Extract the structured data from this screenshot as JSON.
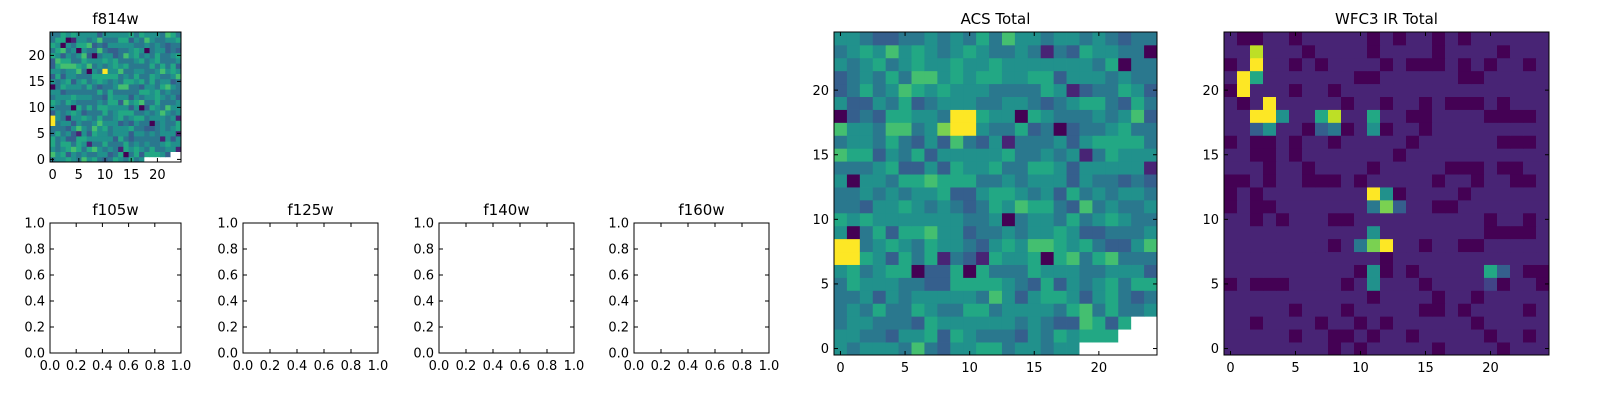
{
  "figure": {
    "description_free": true
  },
  "chart_data": [
    {
      "id": "f814w",
      "type": "heatmap",
      "title": "f814w",
      "xlim": [
        -0.5,
        24.5
      ],
      "ylim": [
        -0.5,
        24.5
      ],
      "xticks": [
        0,
        5,
        10,
        15,
        20
      ],
      "yticks": [
        0,
        5,
        10,
        15,
        20
      ],
      "colormap": "viridis",
      "hot_pixels": [
        [
          10,
          17,
          1.0
        ],
        [
          0,
          8,
          1.0
        ],
        [
          0,
          7,
          0.95
        ]
      ],
      "masked_region": "bottom-right corner"
    },
    {
      "id": "f105w",
      "type": "empty",
      "title": "f105w",
      "xlim": [
        0,
        1
      ],
      "ylim": [
        0,
        1
      ],
      "xticks": [
        "0.0",
        "0.2",
        "0.4",
        "0.6",
        "0.8",
        "1.0"
      ],
      "yticks": [
        "0.0",
        "0.2",
        "0.4",
        "0.6",
        "0.8",
        "1.0"
      ]
    },
    {
      "id": "f125w",
      "type": "empty",
      "title": "f125w",
      "xlim": [
        0,
        1
      ],
      "ylim": [
        0,
        1
      ],
      "xticks": [
        "0.0",
        "0.2",
        "0.4",
        "0.6",
        "0.8",
        "1.0"
      ],
      "yticks": [
        "0.0",
        "0.2",
        "0.4",
        "0.6",
        "0.8",
        "1.0"
      ]
    },
    {
      "id": "f140w",
      "type": "empty",
      "title": "f140w",
      "xlim": [
        0,
        1
      ],
      "ylim": [
        0,
        1
      ],
      "xticks": [
        "0.0",
        "0.2",
        "0.4",
        "0.6",
        "0.8",
        "1.0"
      ],
      "yticks": [
        "0.0",
        "0.2",
        "0.4",
        "0.6",
        "0.8",
        "1.0"
      ]
    },
    {
      "id": "f160w",
      "type": "empty",
      "title": "f160w",
      "xlim": [
        0,
        1
      ],
      "ylim": [
        0,
        1
      ],
      "xticks": [
        "0.0",
        "0.2",
        "0.4",
        "0.6",
        "0.8",
        "1.0"
      ],
      "yticks": [
        "0.0",
        "0.2",
        "0.4",
        "0.6",
        "0.8",
        "1.0"
      ]
    },
    {
      "id": "acs-total",
      "type": "heatmap",
      "title": "ACS Total",
      "xlim": [
        -0.5,
        24.5
      ],
      "ylim": [
        -0.5,
        24.5
      ],
      "xticks": [
        0,
        5,
        10,
        15,
        20
      ],
      "yticks": [
        0,
        5,
        10,
        15,
        20
      ],
      "colormap": "viridis",
      "hot_pixels": [
        [
          9,
          17,
          1.0
        ],
        [
          10,
          17,
          1.0
        ],
        [
          9,
          18,
          1.0
        ],
        [
          10,
          18,
          1.0
        ],
        [
          8,
          17,
          0.75
        ],
        [
          9,
          16,
          0.7
        ],
        [
          0,
          7,
          1.0
        ],
        [
          1,
          7,
          1.0
        ],
        [
          0,
          8,
          1.0
        ],
        [
          1,
          8,
          0.95
        ]
      ],
      "masked_region": "bottom-right corner"
    },
    {
      "id": "wfc3-ir-total",
      "type": "heatmap",
      "title": "WFC3 IR Total",
      "xlim": [
        -0.5,
        24.5
      ],
      "ylim": [
        -0.5,
        24.5
      ],
      "xticks": [
        0,
        5,
        10,
        15,
        20
      ],
      "yticks": [
        0,
        5,
        10,
        15,
        20
      ],
      "colormap": "viridis",
      "hot_pixels": [
        [
          2,
          23,
          0.85
        ],
        [
          2,
          22,
          1.0
        ],
        [
          1,
          21,
          1.0
        ],
        [
          1,
          20,
          1.0
        ],
        [
          2,
          21,
          0.6
        ],
        [
          2,
          18,
          1.0
        ],
        [
          3,
          18,
          1.0
        ],
        [
          3,
          19,
          1.0
        ],
        [
          4,
          18,
          0.5
        ],
        [
          3,
          17,
          0.45
        ],
        [
          2,
          17,
          0.3
        ],
        [
          7,
          18,
          0.55
        ],
        [
          8,
          18,
          0.85
        ],
        [
          8,
          17,
          0.35
        ],
        [
          7,
          17,
          0.25
        ],
        [
          11,
          18,
          0.55
        ],
        [
          11,
          17,
          0.45
        ],
        [
          11,
          12,
          1.0
        ],
        [
          12,
          12,
          0.5
        ],
        [
          12,
          11,
          0.8
        ],
        [
          11,
          11,
          0.4
        ],
        [
          13,
          11,
          0.25
        ],
        [
          11,
          8,
          0.8
        ],
        [
          12,
          8,
          1.0
        ],
        [
          11,
          9,
          0.5
        ],
        [
          10,
          8,
          0.35
        ],
        [
          11,
          6,
          0.45
        ],
        [
          11,
          5,
          0.45
        ],
        [
          20,
          6,
          0.6
        ],
        [
          21,
          6,
          0.25
        ],
        [
          20,
          5,
          0.2
        ]
      ],
      "masked_region": "none"
    }
  ]
}
